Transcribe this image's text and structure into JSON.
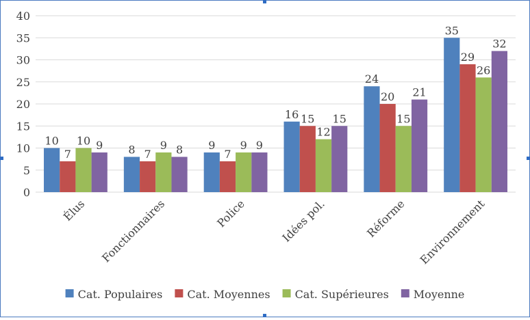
{
  "colors": {
    "accent": "#2f6cc4",
    "grid": "#d9d9d9",
    "text": "#404040"
  },
  "chart_data": {
    "type": "bar",
    "title": "",
    "xlabel": "",
    "ylabel": "",
    "ylim": [
      0,
      40
    ],
    "yticks": [
      0,
      5,
      10,
      15,
      20,
      25,
      30,
      35,
      40
    ],
    "grid": true,
    "legend_position": "bottom",
    "data_labels": true,
    "categories": [
      "Élus",
      "Fonctionnaires",
      "Police",
      "Idées pol.",
      "Réforme",
      "Environnement"
    ],
    "series": [
      {
        "name": "Cat. Populaires",
        "color": "#4f81bd",
        "values": [
          10,
          8,
          9,
          16,
          24,
          35
        ]
      },
      {
        "name": "Cat. Moyennes",
        "color": "#c0504d",
        "values": [
          7,
          7,
          7,
          15,
          20,
          29
        ]
      },
      {
        "name": "Cat. Supérieures",
        "color": "#9bbb59",
        "values": [
          10,
          9,
          9,
          12,
          15,
          26
        ]
      },
      {
        "name": "Moyenne",
        "color": "#8064a2",
        "values": [
          9,
          8,
          9,
          15,
          21,
          32
        ]
      }
    ]
  }
}
